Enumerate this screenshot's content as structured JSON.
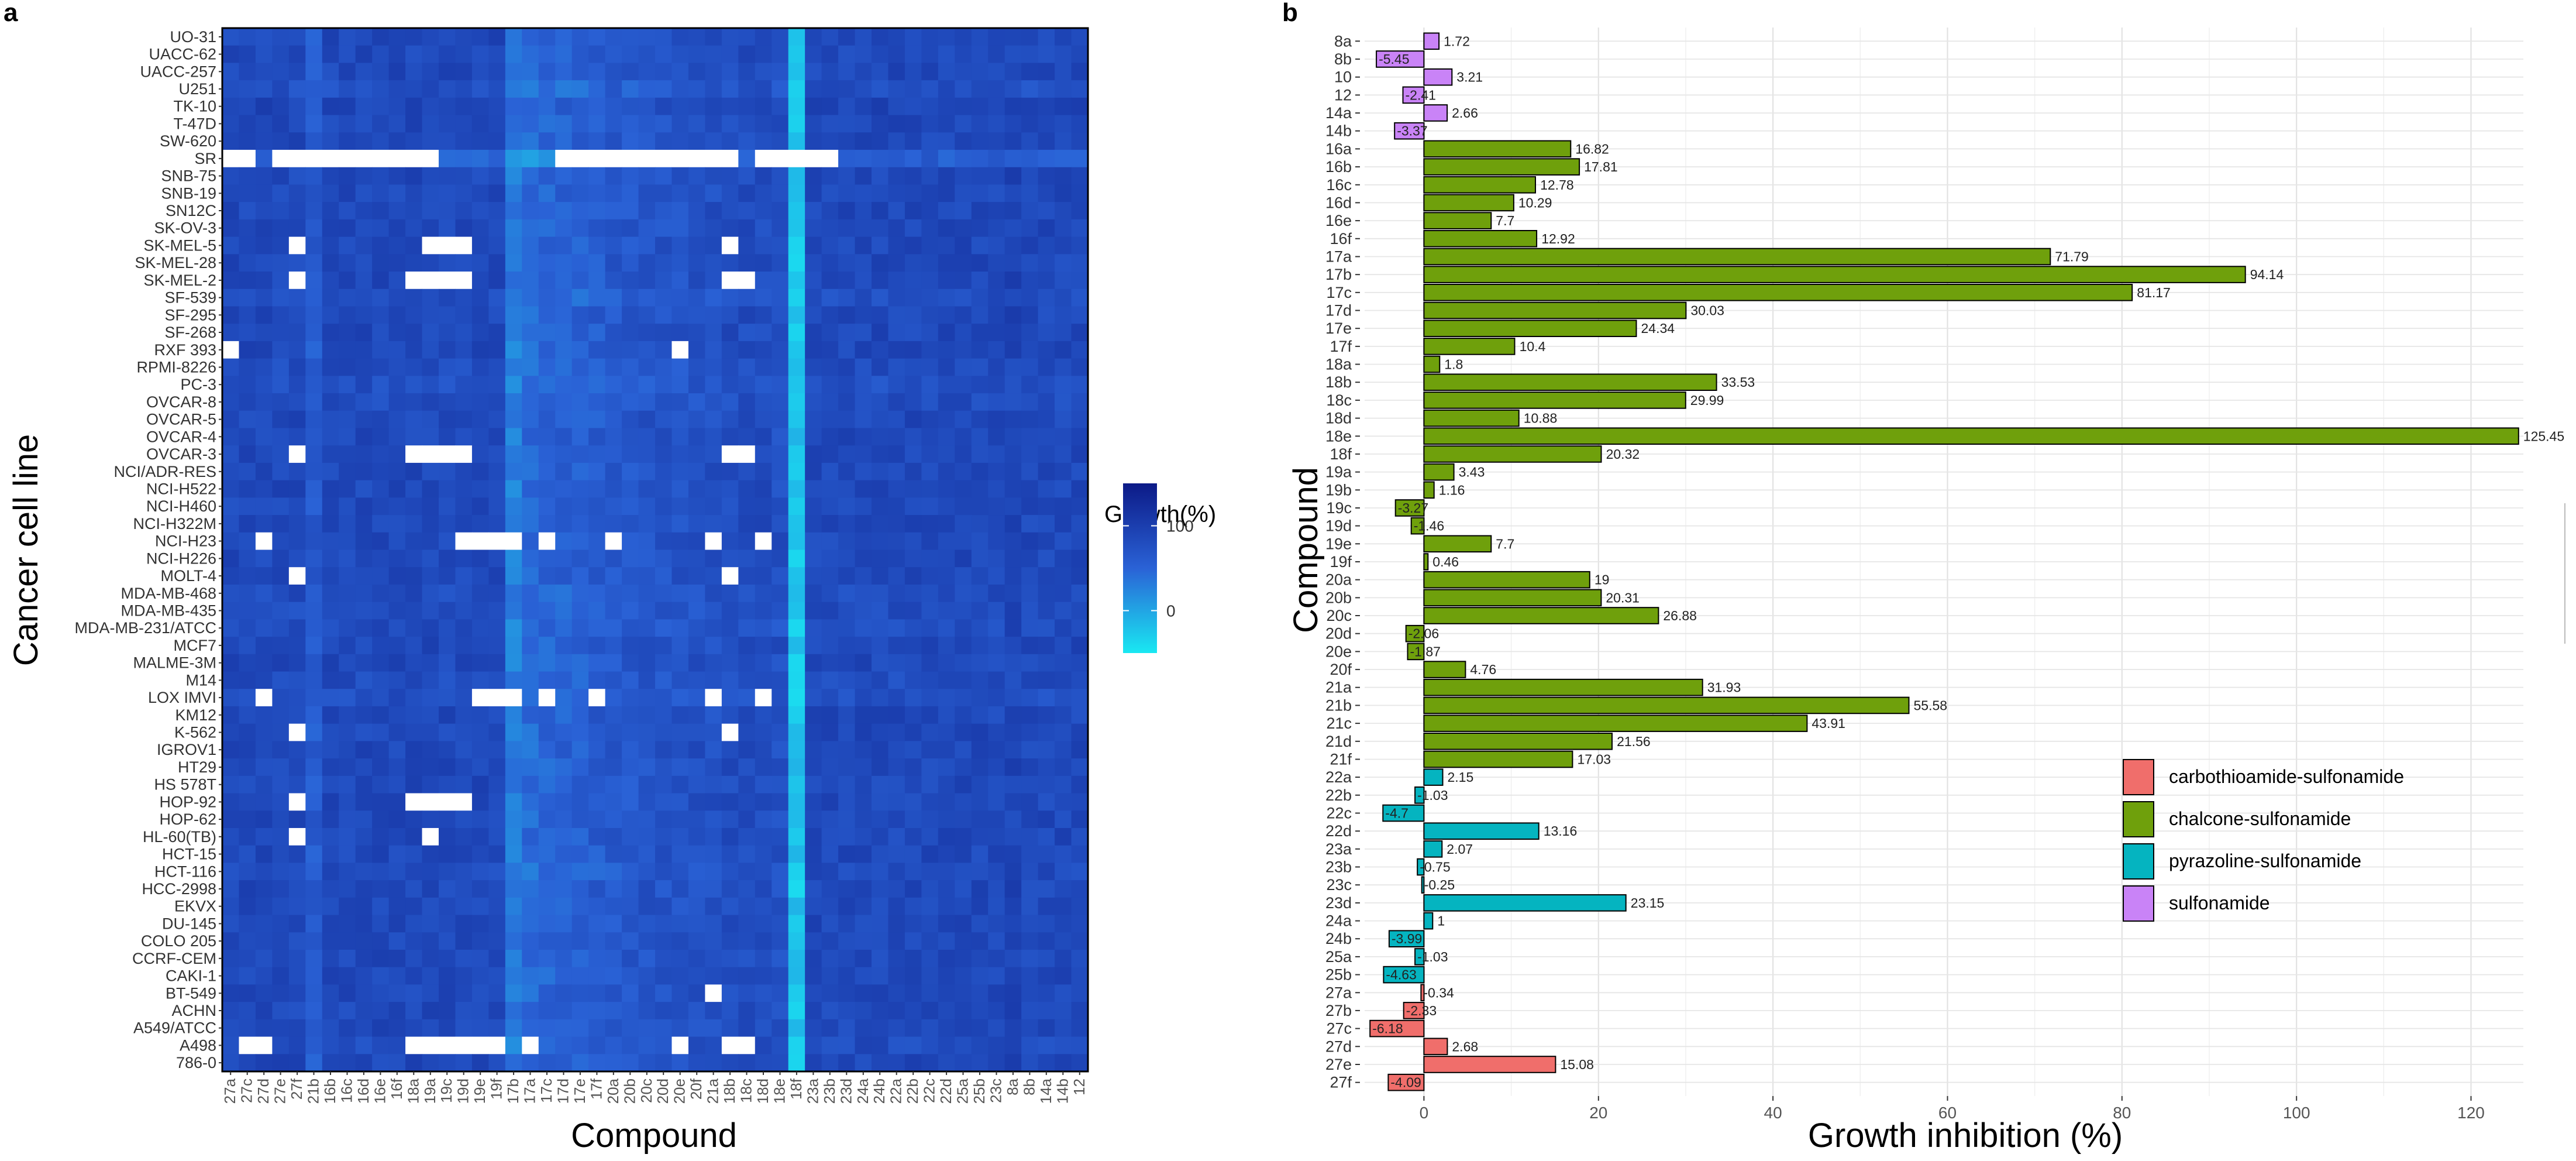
{
  "chart_data": [
    {
      "type": "heatmap",
      "panel_label": "a",
      "xlabel": "Compound",
      "ylabel": "Cancer cell line",
      "legend_title": "Growth(%)",
      "legend_ticks": [
        100,
        0
      ],
      "color_range": [
        -50,
        150
      ],
      "colors": {
        "low": "#19E8F2",
        "high": "#0C1A87",
        "missing": "#FFFFFF",
        "panel_border": "#000000"
      },
      "x_categories": [
        "27a",
        "27c",
        "27d",
        "27e",
        "27f",
        "21b",
        "16b",
        "16c",
        "16d",
        "16e",
        "16f",
        "18a",
        "19a",
        "19c",
        "19d",
        "19e",
        "19f",
        "17b",
        "17a",
        "17c",
        "17d",
        "17e",
        "17f",
        "20a",
        "20b",
        "20c",
        "20d",
        "20e",
        "20f",
        "21a",
        "18b",
        "18c",
        "18d",
        "18e",
        "18f",
        "23a",
        "23b",
        "23d",
        "24a",
        "24b",
        "22a",
        "22b",
        "22c",
        "22d",
        "25a",
        "25b",
        "23c",
        "8a",
        "8b",
        "14a",
        "14b",
        "12"
      ],
      "y_categories": [
        "UO-31",
        "UACC-62",
        "UACC-257",
        "U251",
        "TK-10",
        "T-47D",
        "SW-620",
        "SR",
        "SNB-75",
        "SNB-19",
        "SN12C",
        "SK-OV-3",
        "SK-MEL-5",
        "SK-MEL-28",
        "SK-MEL-2",
        "SF-539",
        "SF-295",
        "SF-268",
        "RXF 393",
        "RPMI-8226",
        "PC-3",
        "OVCAR-8",
        "OVCAR-5",
        "OVCAR-4",
        "OVCAR-3",
        "NCI/ADR-RES",
        "NCI-H522",
        "NCI-H460",
        "NCI-H322M",
        "NCI-H23",
        "NCI-H226",
        "MOLT-4",
        "MDA-MB-468",
        "MDA-MB-435",
        "MDA-MB-231/ATCC",
        "MCF7",
        "MALME-3M",
        "M14",
        "LOX IMVI",
        "KM12",
        "K-562",
        "IGROV1",
        "HT29",
        "HS 578T",
        "HOP-92",
        "HOP-62",
        "HL-60(TB)",
        "HCT-15",
        "HCT-116",
        "HCC-2998",
        "EKVX",
        "DU-145",
        "COLO 205",
        "CCRF-CEM",
        "CAKI-1",
        "BT-549",
        "ACHN",
        "A549/ATCC",
        "A498",
        "786-0"
      ],
      "column_shifts": [
        0,
        0,
        0,
        0,
        0,
        -25,
        0,
        0,
        0,
        0,
        0,
        0,
        0,
        0,
        0,
        0,
        0,
        -55,
        -40,
        -35,
        -30,
        -30,
        -25,
        -20,
        -20,
        -15,
        -15,
        -15,
        -10,
        -10,
        -5,
        -5,
        -5,
        -10,
        -110,
        0,
        0,
        0,
        0,
        0,
        0,
        0,
        0,
        0,
        0,
        0,
        0,
        5,
        0,
        0,
        0,
        0
      ],
      "row_shifts": [
        0,
        0,
        0,
        -10,
        5,
        0,
        0,
        -30,
        0,
        0,
        0,
        0,
        0,
        0,
        0,
        -10,
        0,
        0,
        0,
        -5,
        -10,
        -5,
        0,
        0,
        0,
        0,
        0,
        0,
        0,
        0,
        0,
        0,
        -5,
        -5,
        -5,
        0,
        0,
        -5,
        -10,
        0,
        0,
        0,
        0,
        0,
        0,
        0,
        0,
        0,
        -5,
        0,
        0,
        0,
        0,
        0,
        0,
        0,
        0,
        0,
        -5,
        0
      ],
      "missing_ranges": {
        "SR": [
          [
            0,
            1
          ],
          [
            3,
            12
          ],
          [
            20,
            30
          ],
          [
            32,
            36
          ]
        ],
        "SK-MEL-5": [
          [
            4,
            4
          ],
          [
            12,
            14
          ],
          [
            30,
            30
          ]
        ],
        "SK-MEL-2": [
          [
            4,
            4
          ],
          [
            11,
            14
          ],
          [
            30,
            31
          ]
        ],
        "RXF 393": [
          [
            0,
            0
          ],
          [
            27,
            27
          ]
        ],
        "OVCAR-3": [
          [
            4,
            4
          ],
          [
            11,
            14
          ],
          [
            30,
            31
          ]
        ],
        "NCI-H23": [
          [
            2,
            2
          ],
          [
            14,
            17
          ],
          [
            19,
            19
          ],
          [
            23,
            23
          ],
          [
            29,
            29
          ],
          [
            32,
            32
          ]
        ],
        "MOLT-4": [
          [
            4,
            4
          ],
          [
            30,
            30
          ]
        ],
        "LOX IMVI": [
          [
            2,
            2
          ],
          [
            15,
            17
          ],
          [
            19,
            19
          ],
          [
            22,
            22
          ],
          [
            29,
            29
          ],
          [
            32,
            32
          ]
        ],
        "K-562": [
          [
            4,
            4
          ],
          [
            30,
            30
          ]
        ],
        "HOP-92": [
          [
            4,
            4
          ],
          [
            11,
            11
          ],
          [
            12,
            14
          ]
        ],
        "HL-60(TB)": [
          [
            4,
            4
          ],
          [
            12,
            12
          ]
        ],
        "BT-549": [
          [
            29,
            29
          ]
        ],
        "A498": [
          [
            1,
            2
          ],
          [
            11,
            16
          ],
          [
            18,
            18
          ],
          [
            27,
            27
          ],
          [
            30,
            31
          ]
        ]
      }
    },
    {
      "type": "bar",
      "orientation": "horizontal",
      "panel_label": "b",
      "xlabel": "Growth inhibition (%)",
      "ylabel": "Compound",
      "xlim": [
        -6.8,
        126
      ],
      "xticks": [
        0,
        20,
        40,
        60,
        80,
        100,
        120
      ],
      "legend_position": "lower-right",
      "series_colors": {
        "carbothioamide-sulfonamide": "#F06E6B",
        "chalcone-sulfonamide": "#6FA00C",
        "pyrazoline-sulfonamide": "#05B4C0",
        "sulfonamide": "#C983F7"
      },
      "legend": [
        "carbothioamide-sulfonamide",
        "chalcone-sulfonamide",
        "pyrazoline-sulfonamide",
        "sulfonamide"
      ],
      "bars": [
        {
          "compound": "8a",
          "value": 1.72,
          "label": "1.72",
          "group": "sulfonamide"
        },
        {
          "compound": "8b",
          "value": -5.45,
          "label": "-5.45",
          "group": "sulfonamide"
        },
        {
          "compound": "10",
          "value": 3.21,
          "label": "3.21",
          "group": "sulfonamide"
        },
        {
          "compound": "12",
          "value": -2.41,
          "label": "-2.41",
          "group": "sulfonamide"
        },
        {
          "compound": "14a",
          "value": 2.66,
          "label": "2.66",
          "group": "sulfonamide"
        },
        {
          "compound": "14b",
          "value": -3.37,
          "label": "-3.37",
          "group": "sulfonamide"
        },
        {
          "compound": "16a",
          "value": 16.82,
          "label": "16.82",
          "group": "chalcone-sulfonamide"
        },
        {
          "compound": "16b",
          "value": 17.81,
          "label": "17.81",
          "group": "chalcone-sulfonamide"
        },
        {
          "compound": "16c",
          "value": 12.78,
          "label": "12.78",
          "group": "chalcone-sulfonamide"
        },
        {
          "compound": "16d",
          "value": 10.29,
          "label": "10.29",
          "group": "chalcone-sulfonamide"
        },
        {
          "compound": "16e",
          "value": 7.7,
          "label": "7.7",
          "group": "chalcone-sulfonamide"
        },
        {
          "compound": "16f",
          "value": 12.92,
          "label": "12.92",
          "group": "chalcone-sulfonamide"
        },
        {
          "compound": "17a",
          "value": 71.79,
          "label": "71.79",
          "group": "chalcone-sulfonamide"
        },
        {
          "compound": "17b",
          "value": 94.14,
          "label": "94.14",
          "group": "chalcone-sulfonamide"
        },
        {
          "compound": "17c",
          "value": 81.17,
          "label": "81.17",
          "group": "chalcone-sulfonamide"
        },
        {
          "compound": "17d",
          "value": 30.03,
          "label": "30.03",
          "group": "chalcone-sulfonamide"
        },
        {
          "compound": "17e",
          "value": 24.34,
          "label": "24.34",
          "group": "chalcone-sulfonamide"
        },
        {
          "compound": "17f",
          "value": 10.4,
          "label": "10.4",
          "group": "chalcone-sulfonamide"
        },
        {
          "compound": "18a",
          "value": 1.8,
          "label": "1.8",
          "group": "chalcone-sulfonamide"
        },
        {
          "compound": "18b",
          "value": 33.53,
          "label": "33.53",
          "group": "chalcone-sulfonamide"
        },
        {
          "compound": "18c",
          "value": 29.99,
          "label": "29.99",
          "group": "chalcone-sulfonamide"
        },
        {
          "compound": "18d",
          "value": 10.88,
          "label": "10.88",
          "group": "chalcone-sulfonamide"
        },
        {
          "compound": "18e",
          "value": 125.45,
          "label": "125.45",
          "group": "chalcone-sulfonamide"
        },
        {
          "compound": "18f",
          "value": 20.32,
          "label": "20.32",
          "group": "chalcone-sulfonamide"
        },
        {
          "compound": "19a",
          "value": 3.43,
          "label": "3.43",
          "group": "chalcone-sulfonamide"
        },
        {
          "compound": "19b",
          "value": 1.16,
          "label": "1.16",
          "group": "chalcone-sulfonamide"
        },
        {
          "compound": "19c",
          "value": -3.27,
          "label": "-3.27",
          "group": "chalcone-sulfonamide"
        },
        {
          "compound": "19d",
          "value": -1.46,
          "label": "-1.46",
          "group": "chalcone-sulfonamide"
        },
        {
          "compound": "19e",
          "value": 7.7,
          "label": "7.7",
          "group": "chalcone-sulfonamide"
        },
        {
          "compound": "19f",
          "value": 0.46,
          "label": "0.46",
          "group": "chalcone-sulfonamide"
        },
        {
          "compound": "20a",
          "value": 19,
          "label": "19",
          "group": "chalcone-sulfonamide"
        },
        {
          "compound": "20b",
          "value": 20.31,
          "label": "20.31",
          "group": "chalcone-sulfonamide"
        },
        {
          "compound": "20c",
          "value": 26.88,
          "label": "26.88",
          "group": "chalcone-sulfonamide"
        },
        {
          "compound": "20d",
          "value": -2.06,
          "label": "-2.06",
          "group": "chalcone-sulfonamide"
        },
        {
          "compound": "20e",
          "value": -1.87,
          "label": "-1.87",
          "group": "chalcone-sulfonamide"
        },
        {
          "compound": "20f",
          "value": 4.76,
          "label": "4.76",
          "group": "chalcone-sulfonamide"
        },
        {
          "compound": "21a",
          "value": 31.93,
          "label": "31.93",
          "group": "chalcone-sulfonamide"
        },
        {
          "compound": "21b",
          "value": 55.58,
          "label": "55.58",
          "group": "chalcone-sulfonamide"
        },
        {
          "compound": "21c",
          "value": 43.91,
          "label": "43.91",
          "group": "chalcone-sulfonamide"
        },
        {
          "compound": "21d",
          "value": 21.56,
          "label": "21.56",
          "group": "chalcone-sulfonamide"
        },
        {
          "compound": "21f",
          "value": 17.03,
          "label": "17.03",
          "group": "chalcone-sulfonamide"
        },
        {
          "compound": "22a",
          "value": 2.15,
          "label": "2.15",
          "group": "pyrazoline-sulfonamide"
        },
        {
          "compound": "22b",
          "value": -1.03,
          "label": "-1.03",
          "group": "pyrazoline-sulfonamide"
        },
        {
          "compound": "22c",
          "value": -4.7,
          "label": "-4.7",
          "group": "pyrazoline-sulfonamide"
        },
        {
          "compound": "22d",
          "value": 13.16,
          "label": "13.16",
          "group": "pyrazoline-sulfonamide"
        },
        {
          "compound": "23a",
          "value": 2.07,
          "label": "2.07",
          "group": "pyrazoline-sulfonamide"
        },
        {
          "compound": "23b",
          "value": -0.75,
          "label": "-0.75",
          "group": "pyrazoline-sulfonamide"
        },
        {
          "compound": "23c",
          "value": -0.25,
          "label": "-0.25",
          "group": "pyrazoline-sulfonamide"
        },
        {
          "compound": "23d",
          "value": 23.15,
          "label": "23.15",
          "group": "pyrazoline-sulfonamide"
        },
        {
          "compound": "24a",
          "value": 1,
          "label": "1",
          "group": "pyrazoline-sulfonamide"
        },
        {
          "compound": "24b",
          "value": -3.99,
          "label": "-3.99",
          "group": "pyrazoline-sulfonamide"
        },
        {
          "compound": "25a",
          "value": -1.03,
          "label": "-1.03",
          "group": "pyrazoline-sulfonamide"
        },
        {
          "compound": "25b",
          "value": -4.63,
          "label": "-4.63",
          "group": "pyrazoline-sulfonamide"
        },
        {
          "compound": "27a",
          "value": -0.34,
          "label": "-0.34",
          "group": "carbothioamide-sulfonamide"
        },
        {
          "compound": "27b",
          "value": -2.33,
          "label": "-2.33",
          "group": "carbothioamide-sulfonamide"
        },
        {
          "compound": "27c",
          "value": -6.18,
          "label": "-6.18",
          "group": "carbothioamide-sulfonamide"
        },
        {
          "compound": "27d",
          "value": 2.68,
          "label": "2.68",
          "group": "carbothioamide-sulfonamide"
        },
        {
          "compound": "27e",
          "value": 15.08,
          "label": "15.08",
          "group": "carbothioamide-sulfonamide"
        },
        {
          "compound": "27f",
          "value": -4.09,
          "label": "-4.09",
          "group": "carbothioamide-sulfonamide"
        }
      ]
    }
  ]
}
